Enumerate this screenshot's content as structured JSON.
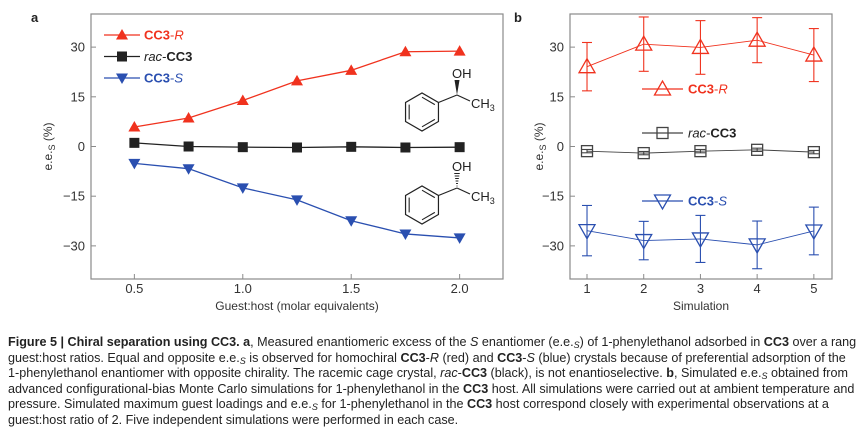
{
  "chart_data": [
    {
      "panel_label": "a",
      "type": "line",
      "xlabel": "Guest:host (molar equivalents)",
      "ylabel": "e.e.S (%)",
      "xlim": [
        0.3,
        2.2
      ],
      "ylim": [
        -40,
        40
      ],
      "xticks": [
        "0.5",
        "1.0",
        "1.5",
        "2.0"
      ],
      "yticks": [
        "30",
        "15",
        "0",
        "−15",
        "−30"
      ],
      "grid": false,
      "legend_position": "top-left",
      "x": [
        0.5,
        0.75,
        1.0,
        1.25,
        1.5,
        1.75,
        2.0
      ],
      "series": [
        {
          "name": "CC3-R",
          "color": "#f0321e",
          "marker": "filled-triangle-up",
          "values": [
            5.9,
            8.6,
            13.9,
            19.8,
            23.0,
            28.6,
            28.8
          ]
        },
        {
          "name": "rac-CC3",
          "color": "#222222",
          "marker": "filled-square",
          "values": [
            1.1,
            0.0,
            -0.2,
            -0.3,
            -0.1,
            -0.3,
            -0.2
          ]
        },
        {
          "name": "CC3-S",
          "color": "#2a4fb0",
          "marker": "filled-triangle-down",
          "values": [
            -5.1,
            -6.7,
            -12.5,
            -16.1,
            -22.4,
            -26.4,
            -27.6
          ]
        }
      ],
      "structures": [
        {
          "oh": "OH",
          "ch3": "CH",
          "sub": "3",
          "stereo": "wedge"
        },
        {
          "oh": "OH",
          "ch3": "CH",
          "sub": "3",
          "stereo": "hash"
        }
      ]
    },
    {
      "panel_label": "b",
      "type": "line",
      "xlabel": "Simulation",
      "ylabel": "e.e.S (%)",
      "xlim": [
        0.7,
        5.32
      ],
      "ylim": [
        -40,
        40
      ],
      "xticks": [
        "1",
        "2",
        "3",
        "4",
        "5"
      ],
      "yticks": [
        "30",
        "15",
        "0",
        "−15",
        "−30"
      ],
      "grid": false,
      "legend_position": "inline",
      "x": [
        1,
        2,
        3,
        4,
        5
      ],
      "series": [
        {
          "name": "CC3-R",
          "color": "#f0321e",
          "marker": "open-triangle-up",
          "values": [
            24.1,
            30.9,
            29.9,
            32.1,
            27.6
          ],
          "error": [
            7.3,
            8.2,
            8.1,
            6.8,
            8.0
          ]
        },
        {
          "name": "rac-CC3",
          "color": "#444444",
          "marker": "open-square",
          "values": [
            -1.4,
            -2.0,
            -1.4,
            -1.0,
            -1.7
          ],
          "error": [
            0.5,
            0.5,
            0.5,
            0.5,
            0.5
          ]
        },
        {
          "name": "CC3-S",
          "color": "#2a4fb0",
          "marker": "open-triangle-down",
          "values": [
            -25.4,
            -28.4,
            -27.9,
            -29.7,
            -25.5
          ],
          "error": [
            7.6,
            5.8,
            7.1,
            7.2,
            7.2
          ]
        }
      ]
    }
  ],
  "caption": {
    "lines": [
      [
        {
          "t": "Figure 5 | Chiral separation using CC3. a",
          "s": "b"
        },
        {
          "t": ", Measured enantiomeric excess of the "
        },
        {
          "t": "S",
          "s": "i"
        },
        {
          "t": " enantiomer (e.e."
        },
        {
          "t": "S",
          "s": "sub"
        },
        {
          "t": ") of 1-phenylethanol adsorbed in "
        },
        {
          "t": "CC3",
          "s": "b"
        },
        {
          "t": " over a range of"
        }
      ],
      [
        {
          "t": "guest:host ratios. Equal and opposite e.e."
        },
        {
          "t": "S",
          "s": "sub"
        },
        {
          "t": " is observed for homochiral "
        },
        {
          "t": "CC3",
          "s": "b"
        },
        {
          "t": "-"
        },
        {
          "t": "R",
          "s": "i"
        },
        {
          "t": " (red) and "
        },
        {
          "t": "CC3",
          "s": "b"
        },
        {
          "t": "-"
        },
        {
          "t": "S",
          "s": "i"
        },
        {
          "t": " (blue) crystals because of preferential adsorption of the"
        }
      ],
      [
        {
          "t": "1-phenylethanol enantiomer with opposite chirality. The racemic cage crystal, "
        },
        {
          "t": "rac",
          "s": "i"
        },
        {
          "t": "-"
        },
        {
          "t": "CC3",
          "s": "b"
        },
        {
          "t": " (black), is not enantioselective. "
        },
        {
          "t": "b",
          "s": "b"
        },
        {
          "t": ", Simulated e.e."
        },
        {
          "t": "S",
          "s": "sub"
        },
        {
          "t": " obtained from"
        }
      ],
      [
        {
          "t": "advanced configurational-bias Monte Carlo simulations for 1-phenylethanol in the "
        },
        {
          "t": "CC3",
          "s": "b"
        },
        {
          "t": " host. All simulations were carried out at ambient temperature and"
        }
      ],
      [
        {
          "t": "pressure. Simulated maximum guest loadings and e.e."
        },
        {
          "t": "S",
          "s": "sub"
        },
        {
          "t": " for 1-phenylethanol in the "
        },
        {
          "t": "CC3",
          "s": "b"
        },
        {
          "t": " host correspond closely with experimental observations at a"
        }
      ],
      [
        {
          "t": "guest:host ratio of 2. Five independent simulations were performed in each case."
        }
      ]
    ]
  }
}
